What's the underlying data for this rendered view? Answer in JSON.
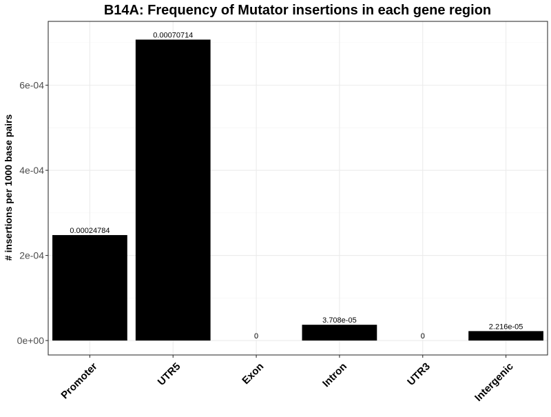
{
  "chart_data": {
    "type": "bar",
    "title": "B14A: Frequency of Mutator insertions in each gene region",
    "xlabel": "",
    "ylabel": "# insertions per 1000 base pairs",
    "categories": [
      "Promoter",
      "UTR5",
      "Exon",
      "Intron",
      "UTR3",
      "Intergenic"
    ],
    "values": [
      0.00024784,
      0.00070714,
      0,
      3.708e-05,
      0,
      2.216e-05
    ],
    "data_labels": [
      "0.00024784",
      "0.00070714",
      "0",
      "3.708e-05",
      "0",
      "2.216e-05"
    ],
    "ylim": [
      -3.39e-05,
      0.00075
    ],
    "yticks": [
      0,
      0.0002,
      0.0004,
      0.0006
    ],
    "ytick_labels": [
      "0e+00",
      "2e-04",
      "4e-04",
      "6e-04"
    ],
    "grid": true,
    "legend": "none",
    "colors": {
      "bar": "#000000",
      "panel_border": "#333333",
      "grid_major": "#ebebeb",
      "grid_minor": "#f4f4f4",
      "tick_text": "#4d4d4d",
      "axis_title": "#000000"
    }
  }
}
